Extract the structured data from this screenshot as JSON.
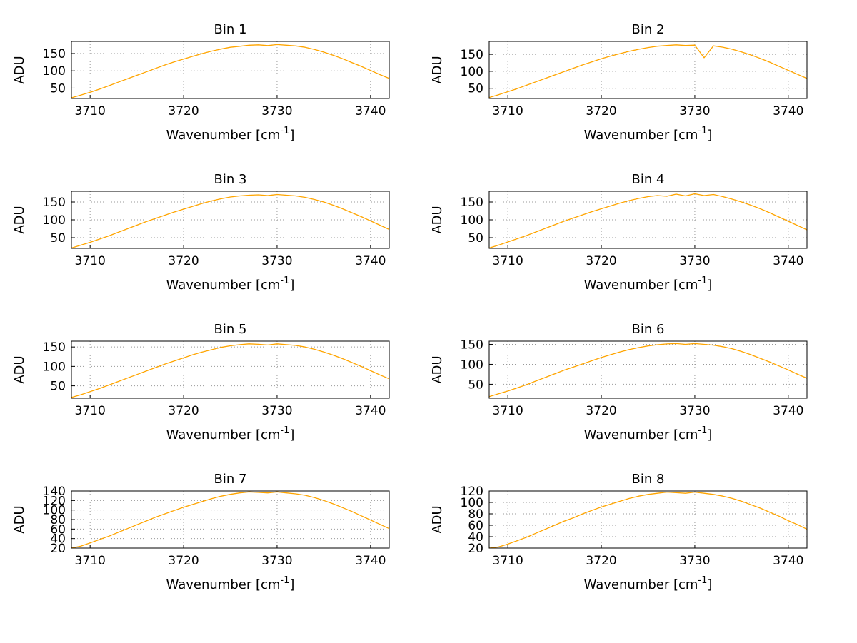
{
  "figure": {
    "background": "#ffffff",
    "rows": 4,
    "cols": 2
  },
  "chart_data": {
    "type": "line",
    "xlabel": {
      "pre": "Wavenumber [cm",
      "sup": "-1",
      "post": "]"
    },
    "ylabel": "ADU",
    "xlim": [
      3708,
      3742
    ],
    "xticks": [
      3710,
      3720,
      3730,
      3740
    ],
    "line_color": "#ffa500",
    "grid_color": "#999999",
    "axis_color": "#000000",
    "x": [
      3708,
      3709,
      3710,
      3711,
      3712,
      3713,
      3714,
      3715,
      3716,
      3717,
      3718,
      3719,
      3720,
      3721,
      3722,
      3723,
      3724,
      3725,
      3726,
      3727,
      3728,
      3729,
      3730,
      3731,
      3732,
      3733,
      3734,
      3735,
      3736,
      3737,
      3738,
      3739,
      3740,
      3741,
      3742
    ],
    "subplots": [
      {
        "title": "Bin 1",
        "ylim": [
          20,
          185
        ],
        "yticks": [
          50,
          100,
          150
        ],
        "y": [
          22,
          30,
          38,
          47,
          57,
          67,
          77,
          87,
          97,
          107,
          117,
          126,
          134,
          142,
          150,
          157,
          163,
          168,
          171,
          174,
          175,
          173,
          176,
          174,
          172,
          168,
          162,
          154,
          145,
          135,
          124,
          113,
          101,
          89,
          78
        ]
      },
      {
        "title": "Bin 2",
        "ylim": [
          20,
          188
        ],
        "yticks": [
          50,
          100,
          150
        ],
        "y": [
          23,
          31,
          40,
          49,
          59,
          69,
          79,
          89,
          99,
          109,
          119,
          128,
          137,
          145,
          152,
          159,
          165,
          170,
          174,
          176,
          178,
          176,
          177,
          140,
          175,
          171,
          165,
          157,
          148,
          138,
          127,
          115,
          103,
          91,
          79
        ]
      },
      {
        "title": "Bin 3",
        "ylim": [
          20,
          180
        ],
        "yticks": [
          50,
          100,
          150
        ],
        "y": [
          21,
          29,
          37,
          46,
          55,
          65,
          75,
          85,
          95,
          104,
          113,
          122,
          130,
          138,
          146,
          153,
          159,
          164,
          167,
          169,
          170,
          168,
          171,
          169,
          167,
          163,
          157,
          150,
          141,
          131,
          120,
          109,
          97,
          85,
          73
        ]
      },
      {
        "title": "Bin 4",
        "ylim": [
          20,
          180
        ],
        "yticks": [
          50,
          100,
          150
        ],
        "y": [
          21,
          29,
          38,
          47,
          56,
          66,
          76,
          86,
          96,
          105,
          114,
          123,
          131,
          139,
          147,
          154,
          160,
          165,
          168,
          166,
          172,
          167,
          173,
          168,
          171,
          165,
          158,
          150,
          141,
          131,
          120,
          108,
          96,
          84,
          72
        ]
      },
      {
        "title": "Bin 5",
        "ylim": [
          18,
          165
        ],
        "yticks": [
          50,
          100,
          150
        ],
        "y": [
          20,
          27,
          35,
          43,
          52,
          61,
          70,
          79,
          88,
          97,
          106,
          114,
          122,
          130,
          137,
          143,
          149,
          153,
          156,
          158,
          157,
          155,
          158,
          156,
          154,
          150,
          144,
          137,
          129,
          120,
          110,
          100,
          89,
          78,
          68
        ]
      },
      {
        "title": "Bin 6",
        "ylim": [
          15,
          158
        ],
        "yticks": [
          50,
          100,
          150
        ],
        "y": [
          19,
          26,
          33,
          41,
          49,
          58,
          67,
          76,
          85,
          93,
          101,
          109,
          117,
          124,
          131,
          137,
          142,
          146,
          149,
          151,
          152,
          150,
          152,
          150,
          148,
          144,
          139,
          132,
          124,
          115,
          106,
          96,
          86,
          75,
          65
        ]
      },
      {
        "title": "Bin 7",
        "ylim": [
          20,
          140
        ],
        "yticks": [
          20,
          40,
          60,
          80,
          100,
          120,
          140
        ],
        "y": [
          20,
          24,
          31,
          38,
          45,
          53,
          61,
          69,
          77,
          85,
          92,
          99,
          106,
          112,
          118,
          124,
          129,
          133,
          136,
          138,
          137,
          136,
          138,
          136,
          134,
          131,
          126,
          120,
          113,
          105,
          97,
          88,
          79,
          70,
          61
        ]
      },
      {
        "title": "Bin 8",
        "ylim": [
          20,
          120
        ],
        "yticks": [
          20,
          40,
          60,
          80,
          100,
          120
        ],
        "y": [
          20,
          22,
          27,
          33,
          39,
          46,
          53,
          60,
          67,
          73,
          80,
          86,
          92,
          97,
          102,
          107,
          111,
          114,
          116,
          118,
          117,
          116,
          118,
          116,
          114,
          111,
          107,
          102,
          96,
          90,
          83,
          76,
          68,
          61,
          53
        ]
      }
    ]
  }
}
